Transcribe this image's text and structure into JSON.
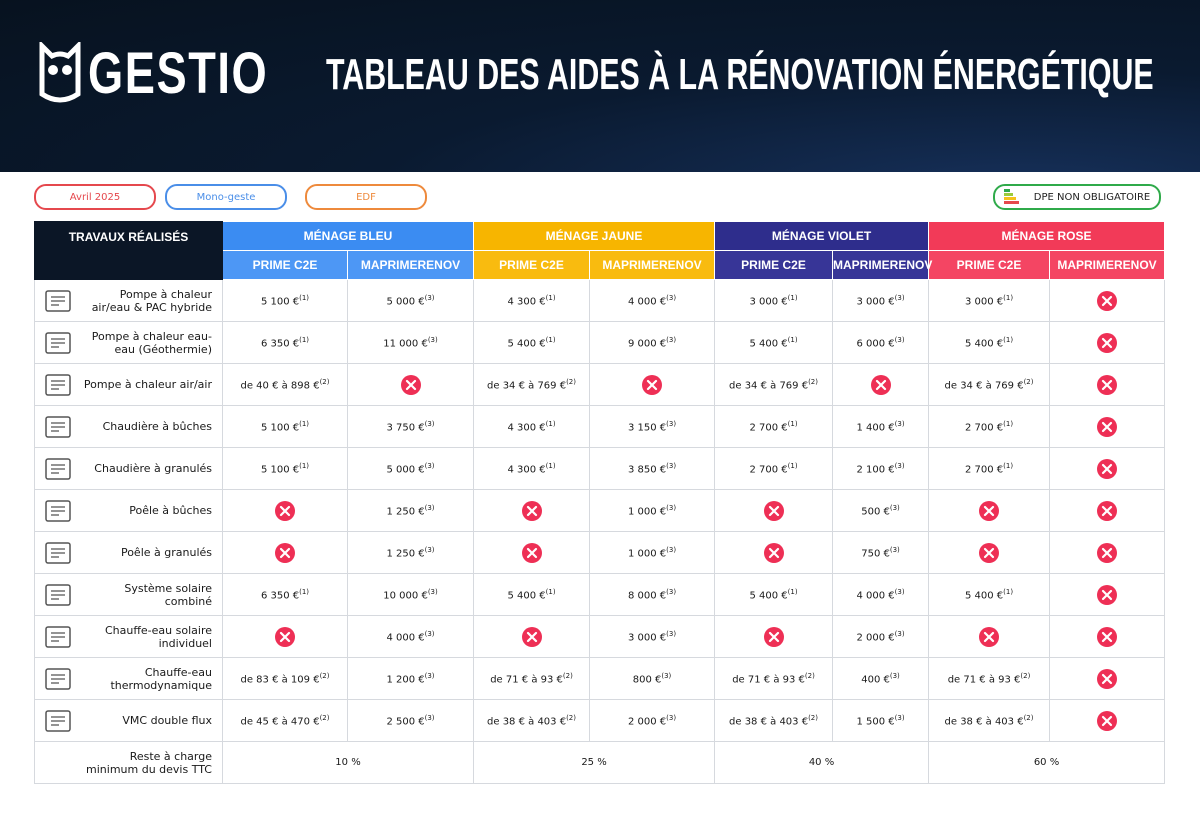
{
  "header": {
    "logo": "GESTIO",
    "title": "TABLEAU DES AIDES À LA RÉNOVATION ÉNERGÉTIQUE"
  },
  "tags": [
    "Avril 2025",
    "Mono-geste",
    "EDF"
  ],
  "dpe": "DPE NON OBLIGATOIRE",
  "table": {
    "corner": "TRAVAUX RÉALISÉS",
    "groups": [
      {
        "name": "MÉNAGE BLEU",
        "color": "#3b8cf2",
        "sub_color": "#4d97f5"
      },
      {
        "name": "MÉNAGE JAUNE",
        "color": "#f7b500",
        "sub_color": "#f9bb0f"
      },
      {
        "name": "MÉNAGE VIOLET",
        "color": "#2e2d8c",
        "sub_color": "#373597"
      },
      {
        "name": "MÉNAGE ROSE",
        "color": "#f23a58",
        "sub_color": "#f44563"
      }
    ],
    "subheaders": [
      "PRIME C2E",
      "MAPRIMERENOV"
    ],
    "rows": [
      {
        "label": "Pompe à chaleur air/eau & PAC hybride",
        "cells": [
          {
            "text": "5 100 €",
            "note": "(1)"
          },
          {
            "text": "5 000 €",
            "note": "(3)"
          },
          {
            "text": "4 300 €",
            "note": "(1)"
          },
          {
            "text": "4 000 €",
            "note": "(3)"
          },
          {
            "text": "3 000 €",
            "note": "(1)"
          },
          {
            "text": "3 000 €",
            "note": "(3)"
          },
          {
            "text": "3 000 €",
            "note": "(1)"
          },
          null
        ]
      },
      {
        "label": "Pompe à chaleur eau-eau (Géothermie)",
        "cells": [
          {
            "text": "6 350 €",
            "note": "(1)"
          },
          {
            "text": "11 000 €",
            "note": "(3)"
          },
          {
            "text": "5 400 €",
            "note": "(1)"
          },
          {
            "text": "9 000 €",
            "note": "(3)"
          },
          {
            "text": "5 400 €",
            "note": "(1)"
          },
          {
            "text": "6 000 €",
            "note": "(3)"
          },
          {
            "text": "5 400 €",
            "note": "(1)"
          },
          null
        ]
      },
      {
        "label": "Pompe à chaleur air/air",
        "cells": [
          {
            "text": "de 40 € à 898 €",
            "note": "(2)"
          },
          null,
          {
            "text": "de 34 € à 769 €",
            "note": "(2)"
          },
          null,
          {
            "text": "de 34 € à 769 €",
            "note": "(2)"
          },
          null,
          {
            "text": "de 34 € à 769 €",
            "note": "(2)"
          },
          null
        ]
      },
      {
        "label": "Chaudière à bûches",
        "cells": [
          {
            "text": "5 100 €",
            "note": "(1)"
          },
          {
            "text": "3 750 €",
            "note": "(3)"
          },
          {
            "text": "4 300 €",
            "note": "(1)"
          },
          {
            "text": "3 150 €",
            "note": "(3)"
          },
          {
            "text": "2 700 €",
            "note": "(1)"
          },
          {
            "text": "1 400 €",
            "note": "(3)"
          },
          {
            "text": "2 700 €",
            "note": "(1)"
          },
          null
        ]
      },
      {
        "label": "Chaudière à granulés",
        "cells": [
          {
            "text": "5 100 €",
            "note": "(1)"
          },
          {
            "text": "5 000 €",
            "note": "(3)"
          },
          {
            "text": "4 300 €",
            "note": "(1)"
          },
          {
            "text": "3 850 €",
            "note": "(3)"
          },
          {
            "text": "2 700 €",
            "note": "(1)"
          },
          {
            "text": "2 100 €",
            "note": "(3)"
          },
          {
            "text": "2 700 €",
            "note": "(1)"
          },
          null
        ]
      },
      {
        "label": "Poêle à bûches",
        "cells": [
          null,
          {
            "text": "1 250 €",
            "note": "(3)"
          },
          null,
          {
            "text": "1 000 €",
            "note": "(3)"
          },
          null,
          {
            "text": "500 €",
            "note": "(3)"
          },
          null,
          null
        ]
      },
      {
        "label": "Poêle à granulés",
        "cells": [
          null,
          {
            "text": "1 250 €",
            "note": "(3)"
          },
          null,
          {
            "text": "1 000 €",
            "note": "(3)"
          },
          null,
          {
            "text": "750 €",
            "note": "(3)"
          },
          null,
          null
        ]
      },
      {
        "label": "Système solaire combiné",
        "cells": [
          {
            "text": "6 350 €",
            "note": "(1)"
          },
          {
            "text": "10 000 €",
            "note": "(3)"
          },
          {
            "text": "5 400 €",
            "note": "(1)"
          },
          {
            "text": "8 000 €",
            "note": "(3)"
          },
          {
            "text": "5 400 €",
            "note": "(1)"
          },
          {
            "text": "4 000 €",
            "note": "(3)"
          },
          {
            "text": "5 400 €",
            "note": "(1)"
          },
          null
        ]
      },
      {
        "label": "Chauffe-eau solaire individuel",
        "cells": [
          null,
          {
            "text": "4 000 €",
            "note": "(3)"
          },
          null,
          {
            "text": "3 000 €",
            "note": "(3)"
          },
          null,
          {
            "text": "2 000 €",
            "note": "(3)"
          },
          null,
          null
        ]
      },
      {
        "label": "Chauffe-eau thermodynamique",
        "cells": [
          {
            "text": "de 83 € à 109 €",
            "note": "(2)"
          },
          {
            "text": "1 200 €",
            "note": "(3)"
          },
          {
            "text": "de 71 € à 93 €",
            "note": "(2)"
          },
          {
            "text": "800 €",
            "note": "(3)"
          },
          {
            "text": "de 71 € à 93 €",
            "note": "(2)"
          },
          {
            "text": "400 €",
            "note": "(3)"
          },
          {
            "text": "de 71 € à 93 €",
            "note": "(2)"
          },
          null
        ]
      },
      {
        "label": "VMC double flux",
        "cells": [
          {
            "text": "de 45 € à 470 €",
            "note": "(2)"
          },
          {
            "text": "2 500 €",
            "note": "(3)"
          },
          {
            "text": "de 38 € à 403 €",
            "note": "(2)"
          },
          {
            "text": "2 000 €",
            "note": "(3)"
          },
          {
            "text": "de 38 € à 403 €",
            "note": "(2)"
          },
          {
            "text": "1 500 €",
            "note": "(3)"
          },
          {
            "text": "de 38 € à 403 €",
            "note": "(2)"
          },
          null
        ]
      }
    ],
    "footer": {
      "label": "Reste à charge minimum du devis TTC",
      "values": [
        "10 %",
        "25 %",
        "40 %",
        "60 %"
      ]
    }
  }
}
